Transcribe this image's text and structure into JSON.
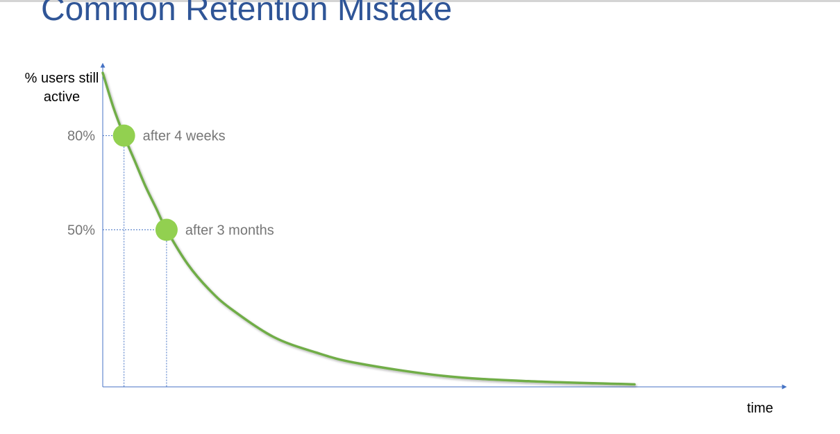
{
  "slide": {
    "title": "Common Retention Mistake"
  },
  "chart_data": {
    "type": "line",
    "title": "",
    "ylabel": "% users still active",
    "xlabel": "time",
    "grid": false,
    "legend": "none",
    "series": [
      {
        "color": "#70ad47",
        "x": [
          0,
          0.5,
          1,
          1.5,
          2,
          2.5,
          3,
          4,
          5,
          6,
          8,
          10,
          12,
          16,
          20,
          25
        ],
        "y": [
          100,
          89,
          80,
          72,
          64,
          57,
          50,
          39,
          31,
          25,
          16,
          11,
          7.5,
          3.5,
          1.8,
          0.8
        ]
      }
    ],
    "ticks_y": [
      {
        "value": 80,
        "label": "80%"
      },
      {
        "value": 50,
        "label": "50%"
      }
    ],
    "annotations": [
      {
        "x": 1,
        "y": 80,
        "label": "after 4 weeks",
        "color": "#92d050"
      },
      {
        "x": 3,
        "y": 50,
        "label": "after 3 months",
        "color": "#92d050"
      }
    ],
    "axis_color": "#4472c4",
    "guide_color": "#4472c4",
    "xlim": [
      0,
      25
    ],
    "ylim": [
      0,
      100
    ]
  }
}
